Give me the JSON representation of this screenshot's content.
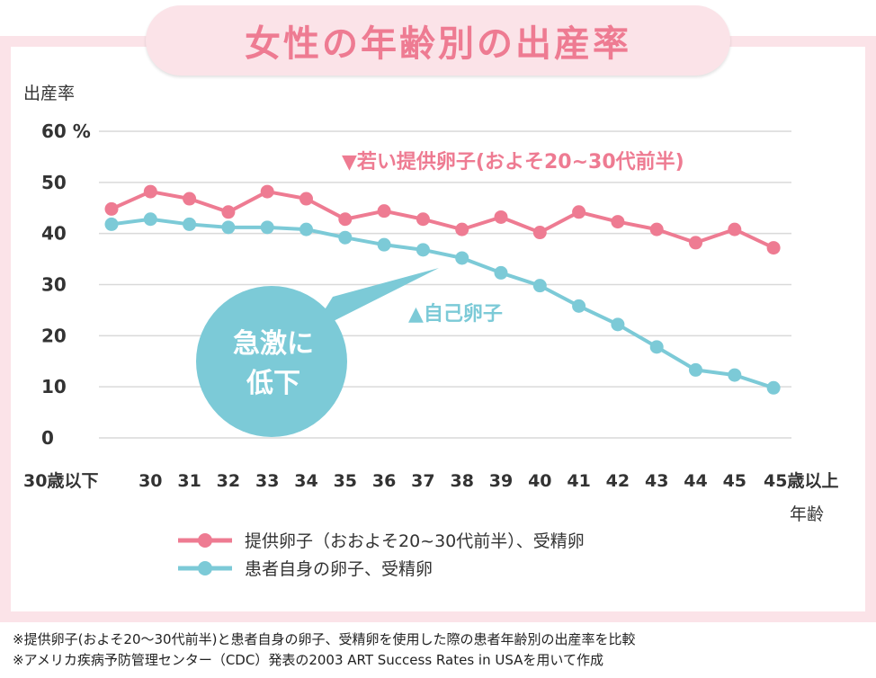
{
  "title": "女性の年齢別の出産率",
  "colors": {
    "donor": "#ee7b92",
    "self": "#7ccad7",
    "frame": "#fbe3e8",
    "grid": "#d9d9d9"
  },
  "annotations": {
    "donor_label": "▼若い提供卵子(およそ20~30代前半)",
    "self_label": "▲自己卵子",
    "bubble_line1": "急激に",
    "bubble_line2": "低下"
  },
  "chart_data": {
    "type": "line",
    "ylabel": "出産率",
    "xlabel": "年齢",
    "ylim": [
      0,
      60
    ],
    "yticks": [
      "60 %",
      "50",
      "40",
      "30",
      "20",
      "10",
      "0"
    ],
    "categories": [
      "30歳以下",
      "30",
      "31",
      "32",
      "33",
      "34",
      "35",
      "36",
      "37",
      "38",
      "39",
      "40",
      "41",
      "42",
      "43",
      "44",
      "45",
      "45歳以上"
    ],
    "grid": true,
    "legend_position": "bottom",
    "series": [
      {
        "name": "提供卵子（おおよそ20~30代前半）、受精卵",
        "key": "donor",
        "values": [
          44.8,
          48.2,
          46.8,
          44.2,
          48.2,
          46.8,
          42.8,
          44.4,
          42.8,
          40.8,
          43.2,
          40.2,
          44.2,
          42.3,
          40.8,
          38.2,
          40.8,
          37.2
        ]
      },
      {
        "name": "患者自身の卵子、受精卵",
        "key": "self",
        "values": [
          41.8,
          42.8,
          41.8,
          41.2,
          41.2,
          40.8,
          39.2,
          37.8,
          36.8,
          35.2,
          32.3,
          29.8,
          25.8,
          22.2,
          17.8,
          13.3,
          12.3,
          9.8
        ]
      }
    ]
  },
  "footnotes": [
    "※提供卵子(およそ20～30代前半)と患者自身の卵子、受精卵を使用した際の患者年齢別の出産率を比較",
    "※アメリカ疾病予防管理センター（CDC）発表の2003 ART Success Rates in USAを用いて作成"
  ]
}
